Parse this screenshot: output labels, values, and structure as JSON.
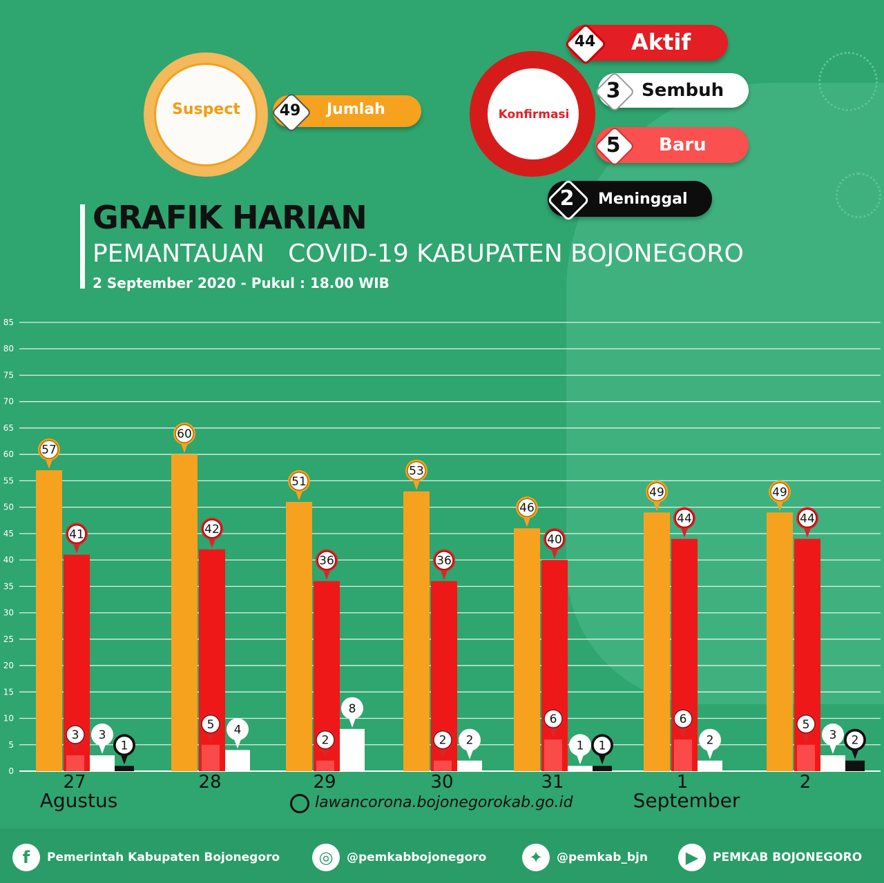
{
  "summary": {
    "suspect": {
      "label": "Suspect",
      "jumlah_value": "49",
      "jumlah_label": "Jumlah"
    },
    "konfirmasi": {
      "label": "Konfirmasi",
      "aktif_value": "44",
      "aktif_label": "Aktif",
      "sembuh_value": "3",
      "sembuh_label": "Sembuh",
      "baru_value": "5",
      "baru_label": "Baru",
      "meninggal_value": "2",
      "meninggal_label": "Meninggal"
    }
  },
  "header": {
    "title": "GRAFIK HARIAN",
    "subtitle": "PEMANTAUAN   COVID-19 KABUPATEN BOJONEGORO",
    "date": "2 September 2020 - Pukul : 18.00 WIB"
  },
  "website": "lawancorona.bojonegorokab.go.id",
  "footer": {
    "facebook": "Pemerintah Kabupaten Bojonegoro",
    "instagram": "@pemkabbojonegoro",
    "twitter": "@pemkab_bjn",
    "youtube": "PEMKAB BOJONEGORO"
  },
  "colors": {
    "background": "#2fa56f",
    "suspect": "#f6a21e",
    "aktif": "#ee1818",
    "baru": "#fa4a4a",
    "sembuh": "#ffffff",
    "meninggal": "#111111"
  },
  "chart_data": {
    "type": "bar",
    "ylim": [
      0,
      85
    ],
    "yticks": [
      0,
      5,
      10,
      15,
      20,
      25,
      30,
      35,
      40,
      45,
      50,
      55,
      60,
      65,
      70,
      75,
      80,
      85
    ],
    "grid": true,
    "categories": [
      "27",
      "28",
      "29",
      "30",
      "31",
      "1",
      "2"
    ],
    "month_labels": [
      "Agustus",
      "",
      "",
      "",
      "",
      "September",
      ""
    ],
    "series": [
      {
        "key": "suspect",
        "values": [
          57,
          60,
          51,
          53,
          46,
          49,
          49
        ]
      },
      {
        "key": "aktif",
        "values": [
          41,
          42,
          36,
          36,
          40,
          44,
          44
        ]
      },
      {
        "key": "baru",
        "values": [
          3,
          5,
          2,
          2,
          6,
          6,
          5
        ]
      },
      {
        "key": "sembuh",
        "values": [
          3,
          4,
          8,
          2,
          1,
          2,
          3
        ]
      },
      {
        "key": "meninggal",
        "values": [
          1,
          0,
          0,
          0,
          1,
          0,
          2
        ]
      }
    ]
  }
}
